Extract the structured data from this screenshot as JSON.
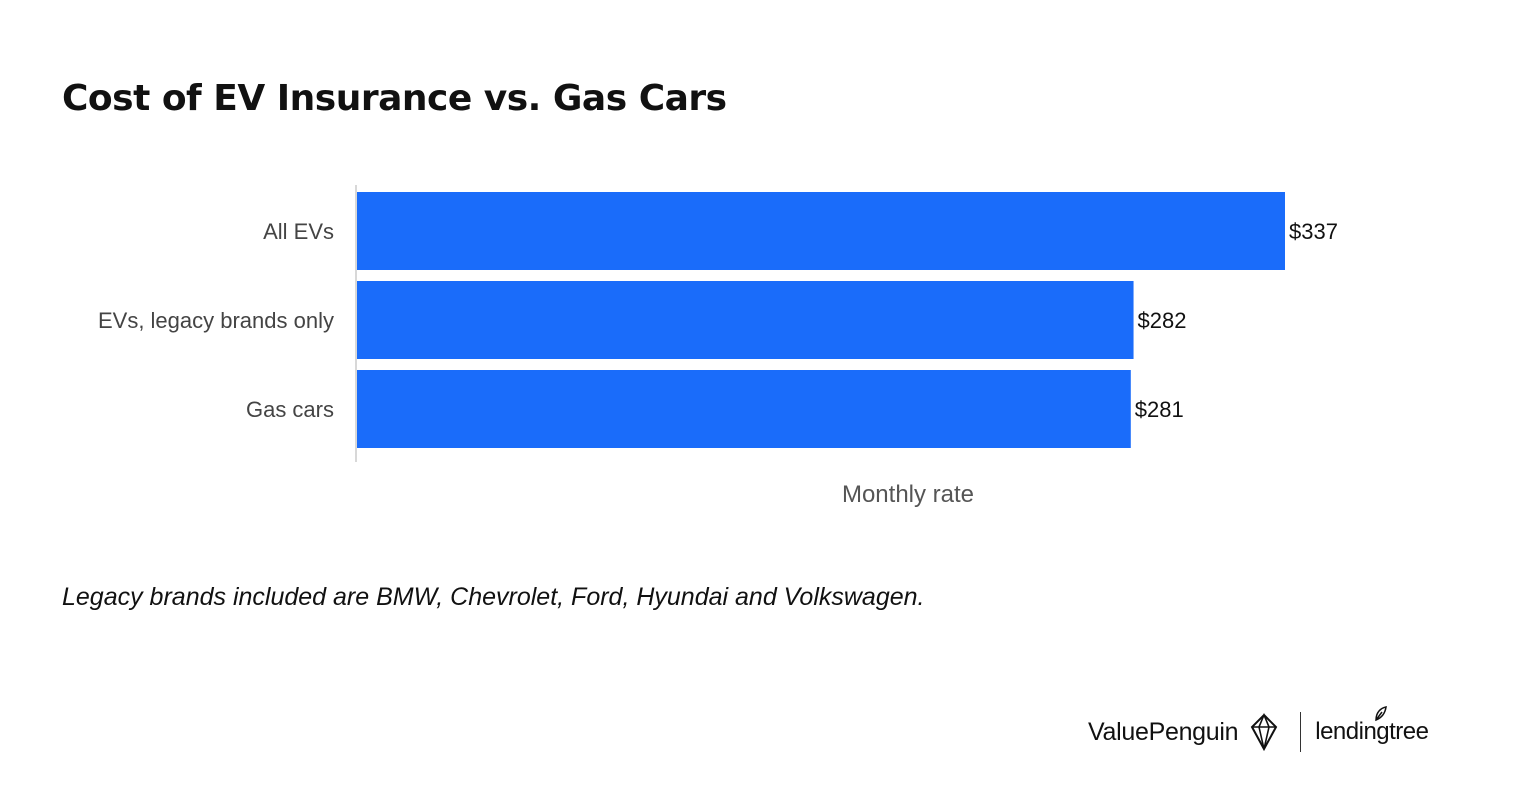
{
  "title": "Cost of EV Insurance vs. Gas Cars",
  "chart_data": {
    "type": "bar",
    "orientation": "horizontal",
    "title": "Cost of EV Insurance vs. Gas Cars",
    "categories": [
      "All EVs",
      "EVs, legacy brands only",
      "Gas cars"
    ],
    "values": [
      337,
      282,
      281
    ],
    "value_labels": [
      "$337",
      "$282",
      "$281"
    ],
    "xlabel": "Monthly rate",
    "ylabel": "",
    "xlim": [
      0,
      337
    ],
    "grid": false,
    "bar_color": "#1a6cfa"
  },
  "footnote": "Legacy brands included are BMW, Chevrolet, Ford, Hyundai and Volkswagen.",
  "brand": {
    "primary": "ValuePenguin",
    "secondary": "lendingtree"
  }
}
